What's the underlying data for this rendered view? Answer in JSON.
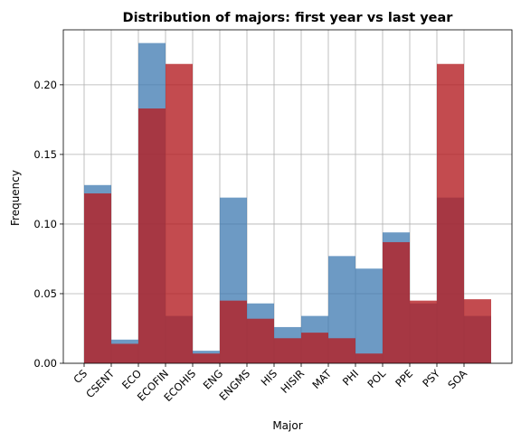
{
  "chart_data": {
    "type": "bar",
    "title": "Distribution of majors: first year vs last year",
    "xlabel": "Major",
    "ylabel": "Frequency",
    "ylim": [
      0,
      0.2395
    ],
    "yticks": [
      "0.00",
      "0.05",
      "0.10",
      "0.15",
      "0.20"
    ],
    "grid": true,
    "legend": "none",
    "categories": [
      "CS",
      "CSENT",
      "ECO",
      "ECOFIN",
      "ECOHIS",
      "ENG",
      "ENGMS",
      "HIS",
      "HISIR",
      "MAT",
      "PHI",
      "POL",
      "PPE",
      "PSY",
      "SOA"
    ],
    "series": [
      {
        "color": "#3c78b0",
        "opacity": 0.75,
        "values": [
          0.128,
          0.017,
          0.23,
          0.034,
          0.009,
          0.119,
          0.043,
          0.026,
          0.034,
          0.077,
          0.068,
          0.094,
          0.043,
          0.119,
          0.034
        ]
      },
      {
        "color": "#b41e23",
        "opacity": 0.8,
        "values": [
          0.122,
          0.014,
          0.183,
          0.215,
          0.007,
          0.045,
          0.032,
          0.018,
          0.022,
          0.018,
          0.007,
          0.087,
          0.045,
          0.215,
          0.046
        ]
      }
    ]
  }
}
